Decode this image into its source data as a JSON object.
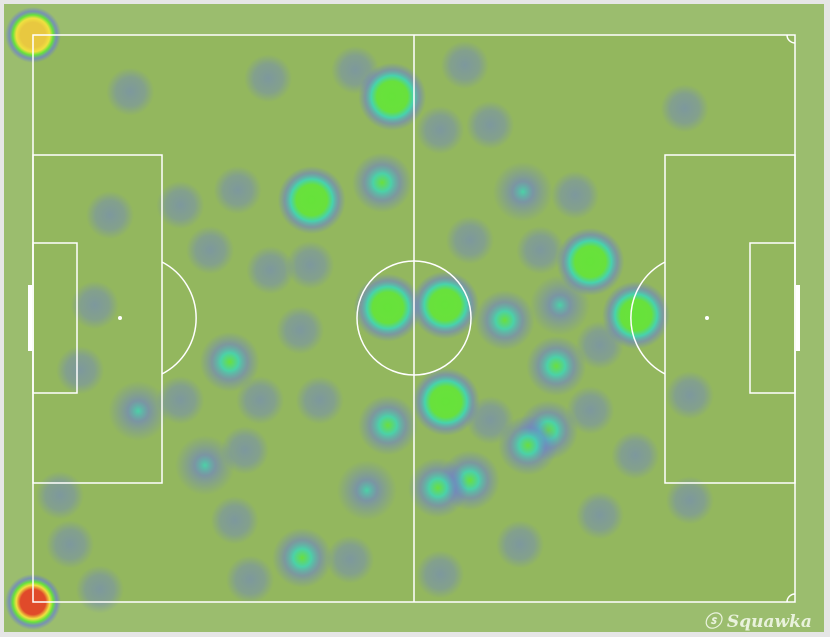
{
  "chart_data": {
    "type": "heatmap",
    "title": "",
    "pitch": {
      "length_m": 105,
      "width_m": 68,
      "lines_color": "#ffffff",
      "grass_color": "#93b75e"
    },
    "colors": {
      "low": "#6b7fd0",
      "mid": "#3fd6b4",
      "high": "#66e33a",
      "peak": "#f0e040",
      "max": "#e04a2a"
    },
    "points": [
      {
        "x": 49.5,
        "y": 7.4,
        "v": 0.8
      },
      {
        "x": 38.4,
        "y": 19.8,
        "v": 0.85
      },
      {
        "x": 48.9,
        "y": 32.7,
        "v": 0.85
      },
      {
        "x": 56.8,
        "y": 32.4,
        "v": 0.9
      },
      {
        "x": 76.8,
        "y": 27.2,
        "v": 0.85
      },
      {
        "x": 83.1,
        "y": 33.6,
        "v": 0.85
      },
      {
        "x": 56.9,
        "y": 44.0,
        "v": 0.8
      },
      {
        "x": 48.1,
        "y": 17.7,
        "v": 0.5
      },
      {
        "x": 48.9,
        "y": 46.8,
        "v": 0.5
      },
      {
        "x": 27.1,
        "y": 39.2,
        "v": 0.5
      },
      {
        "x": 14.5,
        "y": 45.1,
        "v": 0.4
      },
      {
        "x": 37.1,
        "y": 62.7,
        "v": 0.55
      },
      {
        "x": 68.2,
        "y": 49.2,
        "v": 0.6
      },
      {
        "x": 71.0,
        "y": 47.4,
        "v": 0.5
      },
      {
        "x": 65.0,
        "y": 34.2,
        "v": 0.45
      },
      {
        "x": 72.1,
        "y": 39.7,
        "v": 0.45
      },
      {
        "x": 55.8,
        "y": 54.3,
        "v": 0.5
      },
      {
        "x": 60.2,
        "y": 53.4,
        "v": 0.45
      },
      {
        "x": 46.0,
        "y": 54.6,
        "v": 0.4
      },
      {
        "x": 67.5,
        "y": 18.8,
        "v": 0.35
      },
      {
        "x": 72.6,
        "y": 32.4,
        "v": 0.35
      },
      {
        "x": 23.7,
        "y": 51.6,
        "v": 0.3
      },
      {
        "x": 13.4,
        "y": 6.8,
        "v": 0.15
      },
      {
        "x": 32.4,
        "y": 5.2,
        "v": 0.15
      },
      {
        "x": 44.4,
        "y": 4.2,
        "v": 0.15
      },
      {
        "x": 59.5,
        "y": 3.6,
        "v": 0.15
      },
      {
        "x": 63.0,
        "y": 10.8,
        "v": 0.15
      },
      {
        "x": 56.1,
        "y": 11.4,
        "v": 0.15
      },
      {
        "x": 89.8,
        "y": 8.8,
        "v": 0.15
      },
      {
        "x": 10.6,
        "y": 21.6,
        "v": 0.15
      },
      {
        "x": 20.3,
        "y": 20.4,
        "v": 0.15
      },
      {
        "x": 28.2,
        "y": 18.6,
        "v": 0.15
      },
      {
        "x": 24.4,
        "y": 25.8,
        "v": 0.15
      },
      {
        "x": 32.7,
        "y": 28.2,
        "v": 0.15
      },
      {
        "x": 38.2,
        "y": 27.6,
        "v": 0.15
      },
      {
        "x": 8.5,
        "y": 32.4,
        "v": 0.15
      },
      {
        "x": 6.5,
        "y": 40.2,
        "v": 0.15
      },
      {
        "x": 36.8,
        "y": 35.4,
        "v": 0.15
      },
      {
        "x": 31.3,
        "y": 43.8,
        "v": 0.15
      },
      {
        "x": 39.5,
        "y": 43.8,
        "v": 0.15
      },
      {
        "x": 20.3,
        "y": 43.8,
        "v": 0.15
      },
      {
        "x": 3.7,
        "y": 55.2,
        "v": 0.15
      },
      {
        "x": 5.1,
        "y": 61.1,
        "v": 0.15
      },
      {
        "x": 9.2,
        "y": 66.5,
        "v": 0.15
      },
      {
        "x": 27.8,
        "y": 58.2,
        "v": 0.15
      },
      {
        "x": 29.9,
        "y": 65.3,
        "v": 0.15
      },
      {
        "x": 43.7,
        "y": 62.9,
        "v": 0.15
      },
      {
        "x": 56.1,
        "y": 64.7,
        "v": 0.15
      },
      {
        "x": 67.1,
        "y": 61.1,
        "v": 0.15
      },
      {
        "x": 78.1,
        "y": 57.6,
        "v": 0.15
      },
      {
        "x": 83.0,
        "y": 50.4,
        "v": 0.15
      },
      {
        "x": 90.5,
        "y": 43.2,
        "v": 0.15
      },
      {
        "x": 90.5,
        "y": 55.8,
        "v": 0.15
      },
      {
        "x": 76.8,
        "y": 45.0,
        "v": 0.15
      },
      {
        "x": 60.2,
        "y": 24.6,
        "v": 0.15
      },
      {
        "x": 69.9,
        "y": 25.8,
        "v": 0.15
      },
      {
        "x": 74.7,
        "y": 19.2,
        "v": 0.15
      },
      {
        "x": 63.0,
        "y": 46.2,
        "v": 0.15
      },
      {
        "x": 78.1,
        "y": 37.2,
        "v": 0.15
      },
      {
        "x": 29.2,
        "y": 49.8,
        "v": 0.15
      }
    ],
    "corner_markers": [
      {
        "x": 0,
        "y": 0,
        "v": 0.7
      },
      {
        "x": 0,
        "y": 68,
        "v": 1.0
      }
    ]
  },
  "brand": {
    "name": "Squawka",
    "symbol": "ⓢ"
  }
}
